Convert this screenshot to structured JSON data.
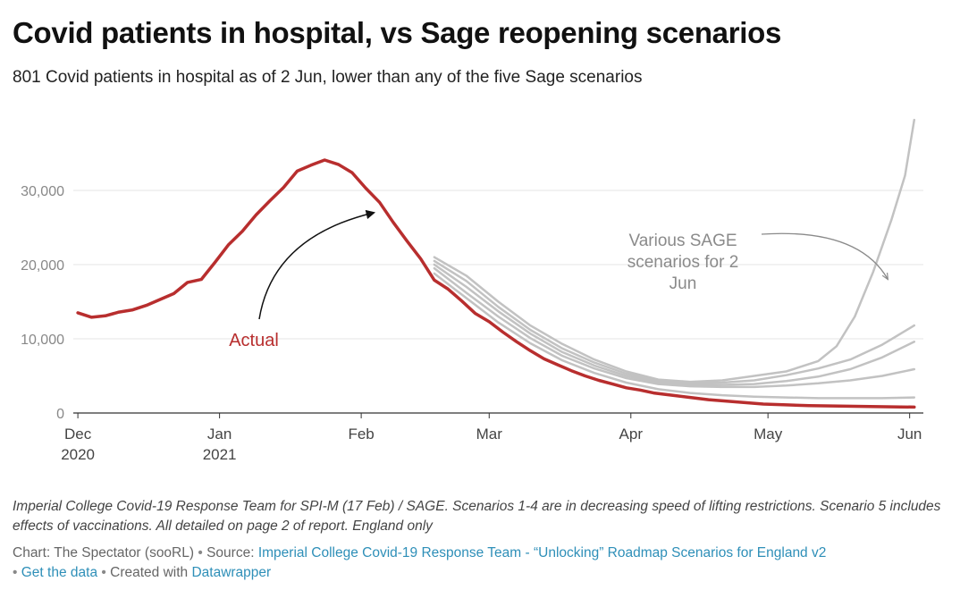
{
  "header": {
    "title": "Covid patients in hospital, vs Sage reopening scenarios",
    "subtitle": "801 Covid patients in hospital as of 2 Jun, lower than any of the five Sage scenarios"
  },
  "footer": {
    "notes": "Imperial College Covid-19 Response Team for SPI-M (17 Feb) / SAGE. Scenarios 1-4 are in decreasing speed of lifting restrictions. Scenario 5 includes effects of vaccinations. All detailed on page 2 of report. England only",
    "chart_credit": "Chart: The Spectator (sooRL)",
    "source_label": "Source:",
    "source_link": "Imperial College Covid-19 Response Team - “Unlocking” Roadmap Scenarios for England v2",
    "get_data": "Get the data",
    "created_with": "Created with",
    "datawrapper": "Datawrapper",
    "separator": "•"
  },
  "chart_data": {
    "type": "line",
    "x_axis": {
      "ticks": [
        {
          "date": "2020-12-01",
          "label": "Dec",
          "sublabel": "2020"
        },
        {
          "date": "2021-01-01",
          "label": "Jan",
          "sublabel": "2021"
        },
        {
          "date": "2021-02-01",
          "label": "Feb",
          "sublabel": ""
        },
        {
          "date": "2021-03-01",
          "label": "Mar",
          "sublabel": ""
        },
        {
          "date": "2021-04-01",
          "label": "Apr",
          "sublabel": ""
        },
        {
          "date": "2021-05-01",
          "label": "May",
          "sublabel": ""
        },
        {
          "date": "2021-06-01",
          "label": "Jun",
          "sublabel": ""
        }
      ],
      "range": [
        "2020-11-30",
        "2021-06-04"
      ]
    },
    "y_axis": {
      "ticks": [
        0,
        10000,
        20000,
        30000
      ],
      "tick_labels": [
        "0",
        "10,000",
        "20,000",
        "30,000"
      ],
      "range": [
        0,
        40000
      ],
      "grid": true
    },
    "series": [
      {
        "name": "Actual",
        "color": "#b82e2e",
        "points": [
          [
            "2020-12-01",
            13500
          ],
          [
            "2020-12-04",
            12900
          ],
          [
            "2020-12-07",
            13100
          ],
          [
            "2020-12-10",
            13600
          ],
          [
            "2020-12-13",
            13900
          ],
          [
            "2020-12-16",
            14500
          ],
          [
            "2020-12-19",
            15300
          ],
          [
            "2020-12-22",
            16100
          ],
          [
            "2020-12-25",
            17600
          ],
          [
            "2020-12-28",
            18000
          ],
          [
            "2020-12-31",
            20300
          ],
          [
            "2021-01-03",
            22700
          ],
          [
            "2021-01-06",
            24500
          ],
          [
            "2021-01-09",
            26700
          ],
          [
            "2021-01-12",
            28600
          ],
          [
            "2021-01-15",
            30400
          ],
          [
            "2021-01-18",
            32600
          ],
          [
            "2021-01-21",
            33400
          ],
          [
            "2021-01-24",
            34100
          ],
          [
            "2021-01-27",
            33500
          ],
          [
            "2021-01-30",
            32400
          ],
          [
            "2021-02-02",
            30300
          ],
          [
            "2021-02-05",
            28400
          ],
          [
            "2021-02-08",
            25700
          ],
          [
            "2021-02-11",
            23200
          ],
          [
            "2021-02-14",
            20800
          ],
          [
            "2021-02-17",
            17900
          ],
          [
            "2021-02-20",
            16700
          ],
          [
            "2021-02-23",
            15100
          ],
          [
            "2021-02-26",
            13400
          ],
          [
            "2021-03-01",
            12300
          ],
          [
            "2021-03-04",
            10900
          ],
          [
            "2021-03-07",
            9600
          ],
          [
            "2021-03-10",
            8400
          ],
          [
            "2021-03-13",
            7300
          ],
          [
            "2021-03-16",
            6500
          ],
          [
            "2021-03-19",
            5700
          ],
          [
            "2021-03-22",
            5000
          ],
          [
            "2021-03-25",
            4400
          ],
          [
            "2021-03-28",
            3900
          ],
          [
            "2021-03-31",
            3400
          ],
          [
            "2021-04-03",
            3100
          ],
          [
            "2021-04-06",
            2700
          ],
          [
            "2021-04-10",
            2400
          ],
          [
            "2021-04-14",
            2100
          ],
          [
            "2021-04-18",
            1800
          ],
          [
            "2021-04-22",
            1600
          ],
          [
            "2021-04-26",
            1400
          ],
          [
            "2021-04-30",
            1200
          ],
          [
            "2021-05-05",
            1100
          ],
          [
            "2021-05-10",
            1000
          ],
          [
            "2021-05-15",
            950
          ],
          [
            "2021-05-20",
            900
          ],
          [
            "2021-05-25",
            860
          ],
          [
            "2021-05-30",
            820
          ],
          [
            "2021-06-02",
            801
          ]
        ]
      },
      {
        "name": "",
        "color": "#c2c2c2",
        "points": [
          [
            "2021-02-17",
            21000
          ],
          [
            "2021-02-24",
            18500
          ],
          [
            "2021-03-03",
            15000
          ],
          [
            "2021-03-10",
            11800
          ],
          [
            "2021-03-17",
            9300
          ],
          [
            "2021-03-24",
            7200
          ],
          [
            "2021-03-31",
            5600
          ],
          [
            "2021-04-07",
            4500
          ],
          [
            "2021-04-14",
            4200
          ],
          [
            "2021-04-21",
            4400
          ],
          [
            "2021-04-28",
            5000
          ],
          [
            "2021-05-05",
            5600
          ],
          [
            "2021-05-12",
            7000
          ],
          [
            "2021-05-16",
            9000
          ],
          [
            "2021-05-20",
            13000
          ],
          [
            "2021-05-24",
            19000
          ],
          [
            "2021-05-28",
            26000
          ],
          [
            "2021-05-31",
            32000
          ],
          [
            "2021-06-02",
            39500
          ]
        ]
      },
      {
        "name": "",
        "color": "#c2c2c2",
        "points": [
          [
            "2021-02-17",
            20500
          ],
          [
            "2021-02-24",
            17800
          ],
          [
            "2021-03-03",
            14300
          ],
          [
            "2021-03-10",
            11200
          ],
          [
            "2021-03-17",
            8700
          ],
          [
            "2021-03-24",
            6800
          ],
          [
            "2021-03-31",
            5300
          ],
          [
            "2021-04-07",
            4300
          ],
          [
            "2021-04-14",
            4000
          ],
          [
            "2021-04-21",
            4100
          ],
          [
            "2021-04-28",
            4400
          ],
          [
            "2021-05-05",
            5100
          ],
          [
            "2021-05-12",
            6000
          ],
          [
            "2021-05-19",
            7200
          ],
          [
            "2021-05-26",
            9200
          ],
          [
            "2021-06-02",
            11800
          ]
        ]
      },
      {
        "name": "",
        "color": "#c2c2c2",
        "points": [
          [
            "2021-02-17",
            20000
          ],
          [
            "2021-02-24",
            17000
          ],
          [
            "2021-03-03",
            13700
          ],
          [
            "2021-03-10",
            10700
          ],
          [
            "2021-03-17",
            8200
          ],
          [
            "2021-03-24",
            6400
          ],
          [
            "2021-03-31",
            5000
          ],
          [
            "2021-04-07",
            4100
          ],
          [
            "2021-04-14",
            3800
          ],
          [
            "2021-04-21",
            3800
          ],
          [
            "2021-04-28",
            3900
          ],
          [
            "2021-05-05",
            4300
          ],
          [
            "2021-05-12",
            4900
          ],
          [
            "2021-05-19",
            5900
          ],
          [
            "2021-05-26",
            7500
          ],
          [
            "2021-06-02",
            9600
          ]
        ]
      },
      {
        "name": "",
        "color": "#c2c2c2",
        "points": [
          [
            "2021-02-17",
            19500
          ],
          [
            "2021-02-24",
            16200
          ],
          [
            "2021-03-03",
            13000
          ],
          [
            "2021-03-10",
            10100
          ],
          [
            "2021-03-17",
            7700
          ],
          [
            "2021-03-24",
            6000
          ],
          [
            "2021-03-31",
            4700
          ],
          [
            "2021-04-07",
            3900
          ],
          [
            "2021-04-14",
            3600
          ],
          [
            "2021-04-21",
            3500
          ],
          [
            "2021-04-28",
            3500
          ],
          [
            "2021-05-05",
            3700
          ],
          [
            "2021-05-12",
            4000
          ],
          [
            "2021-05-19",
            4400
          ],
          [
            "2021-05-26",
            5000
          ],
          [
            "2021-06-02",
            5900
          ]
        ]
      },
      {
        "name": "",
        "color": "#c2c2c2",
        "points": [
          [
            "2021-02-17",
            18800
          ],
          [
            "2021-02-24",
            15500
          ],
          [
            "2021-03-03",
            12200
          ],
          [
            "2021-03-10",
            9400
          ],
          [
            "2021-03-17",
            7100
          ],
          [
            "2021-03-24",
            5400
          ],
          [
            "2021-03-31",
            4100
          ],
          [
            "2021-04-07",
            3200
          ],
          [
            "2021-04-14",
            2700
          ],
          [
            "2021-04-21",
            2400
          ],
          [
            "2021-04-28",
            2200
          ],
          [
            "2021-05-05",
            2100
          ],
          [
            "2021-05-12",
            2000
          ],
          [
            "2021-05-19",
            2000
          ],
          [
            "2021-05-26",
            2000
          ],
          [
            "2021-06-02",
            2100
          ]
        ]
      }
    ],
    "annotations": [
      {
        "text": [
          "Actual"
        ],
        "color": "#b82e2e",
        "target": "actual-line"
      },
      {
        "text": [
          "Various SAGE",
          "scenarios for 2",
          "Jun"
        ],
        "color": "#8a8a8a",
        "target": "scenario-lines"
      }
    ]
  }
}
